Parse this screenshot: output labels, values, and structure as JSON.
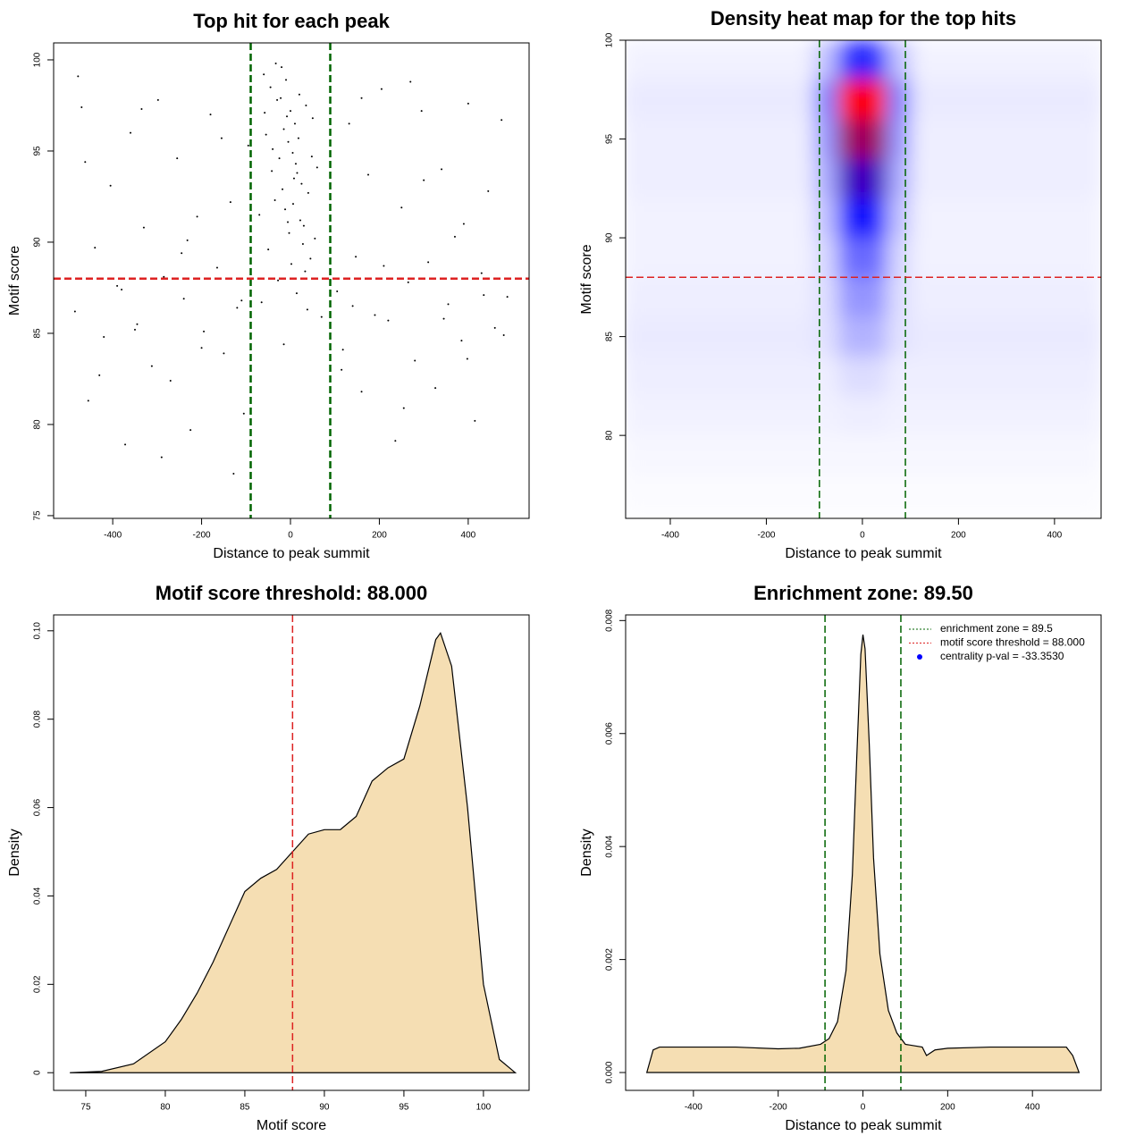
{
  "chart_data": [
    {
      "type": "scatter",
      "title": "Top hit for each peak",
      "xlabel": "Distance to peak summit",
      "ylabel": "Motif score",
      "xlim": [
        -533,
        537
      ],
      "ylim": [
        74.85,
        100.93
      ],
      "xticks": [
        -400,
        -200,
        0,
        200,
        400
      ],
      "yticks": [
        75,
        80,
        85,
        90,
        95,
        100
      ],
      "color": "#000000",
      "vlines": [
        -89.5,
        89.5
      ],
      "vline_color": "#006400",
      "hlines": [
        88
      ],
      "hline_color": "#dd2222",
      "x": [
        -60,
        -45,
        -30,
        -20,
        -10,
        0,
        10,
        20,
        35,
        50,
        -55,
        -40,
        -25,
        -15,
        -5,
        5,
        15,
        25,
        40,
        60,
        -70,
        -35,
        -12,
        8,
        30,
        55,
        -50,
        -18,
        2,
        22,
        45,
        -28,
        -8,
        12,
        33,
        -65,
        -3,
        18,
        70,
        -42,
        -22,
        6,
        28,
        -58,
        14,
        -33,
        48,
        -6,
        38,
        -15,
        -485,
        -470,
        -455,
        -440,
        -420,
        -405,
        -390,
        -372,
        -360,
        -345,
        -330,
        -312,
        -298,
        -285,
        -270,
        -255,
        -240,
        -225,
        -210,
        -195,
        -180,
        -165,
        -150,
        -135,
        -120,
        -105,
        -95,
        105,
        118,
        132,
        147,
        160,
        175,
        190,
        205,
        220,
        236,
        250,
        265,
        280,
        295,
        310,
        326,
        340,
        355,
        370,
        385,
        400,
        415,
        430,
        445,
        460,
        475,
        488,
        -478,
        -430,
        -380,
        -335,
        -290,
        -245,
        -200,
        -155,
        -110,
        115,
        160,
        210,
        255,
        300,
        345,
        390,
        435,
        480,
        -462,
        -350,
        -232,
        -128,
        140,
        270,
        398,
        466
      ],
      "values": [
        99.2,
        98.5,
        97.8,
        99.6,
        98.9,
        97.2,
        96.5,
        98.1,
        97.5,
        96.8,
        95.9,
        95.1,
        94.6,
        96.2,
        95.5,
        94.9,
        93.8,
        93.2,
        92.7,
        94.1,
        91.5,
        92.3,
        91.8,
        93.5,
        90.9,
        90.2,
        89.6,
        92.9,
        88.8,
        91.2,
        89.1,
        87.9,
        96.9,
        94.3,
        88.4,
        86.7,
        90.5,
        95.7,
        85.9,
        93.9,
        97.9,
        92.1,
        89.9,
        97.1,
        87.2,
        99.8,
        94.7,
        91.1,
        86.3,
        84.4,
        86.2,
        97.4,
        81.3,
        89.7,
        84.8,
        93.1,
        87.6,
        78.9,
        96.0,
        85.5,
        90.8,
        83.2,
        97.8,
        88.1,
        82.4,
        94.6,
        86.9,
        79.7,
        91.4,
        85.1,
        97.0,
        88.6,
        83.9,
        92.2,
        86.4,
        80.6,
        95.3,
        87.3,
        84.1,
        96.5,
        89.2,
        81.8,
        93.7,
        86.0,
        98.4,
        85.7,
        79.1,
        91.9,
        87.8,
        83.5,
        97.2,
        88.9,
        82.0,
        94.0,
        86.6,
        90.3,
        84.6,
        97.6,
        80.2,
        88.3,
        92.8,
        85.3,
        96.7,
        87.0,
        99.1,
        82.7,
        87.4,
        97.3,
        78.2,
        89.4,
        84.2,
        95.7,
        86.8,
        83.0,
        97.9,
        88.7,
        80.9,
        93.4,
        85.8,
        91.0,
        87.1,
        84.9,
        94.4,
        85.2,
        90.1,
        77.3,
        86.5,
        98.8,
        83.6,
        88.0
      ]
    },
    {
      "type": "heatmap",
      "title": "Density heat map for the top hits",
      "xlabel": "Distance to peak summit",
      "ylabel": "Motif score",
      "xlim": [
        -493,
        497
      ],
      "ylim": [
        75.8,
        100
      ],
      "xticks": [
        -400,
        -200,
        0,
        200,
        400
      ],
      "yticks": [
        80,
        85,
        90,
        95,
        100
      ],
      "colors": [
        "#ffffff",
        "#0000ff",
        "#ff0000"
      ],
      "vlines": [
        -89.5,
        89.5
      ],
      "vline_color": "#006400",
      "hlines": [
        88
      ],
      "hline_color": "#dd2222",
      "x": [
        -475,
        -425,
        -375,
        -325,
        -275,
        -225,
        -175,
        -125,
        -75,
        -25,
        25,
        75,
        125,
        175,
        225,
        275,
        325,
        375,
        425,
        475
      ],
      "y": [
        99,
        97,
        95,
        93,
        91,
        89,
        87,
        85,
        83,
        81,
        79,
        77
      ],
      "values": [
        [
          0.03,
          0.03,
          0.03,
          0.03,
          0.03,
          0.03,
          0.03,
          0.03,
          0.15,
          0.5,
          0.5,
          0.15,
          0.03,
          0.03,
          0.03,
          0.03,
          0.03,
          0.03,
          0.03,
          0.03
        ],
        [
          0.05,
          0.05,
          0.05,
          0.05,
          0.05,
          0.05,
          0.05,
          0.05,
          0.3,
          1.0,
          1.0,
          0.3,
          0.05,
          0.05,
          0.05,
          0.05,
          0.05,
          0.05,
          0.05,
          0.05
        ],
        [
          0.04,
          0.04,
          0.04,
          0.04,
          0.04,
          0.04,
          0.04,
          0.04,
          0.25,
          0.85,
          0.85,
          0.25,
          0.04,
          0.04,
          0.04,
          0.04,
          0.04,
          0.04,
          0.04,
          0.04
        ],
        [
          0.04,
          0.04,
          0.04,
          0.04,
          0.04,
          0.04,
          0.04,
          0.04,
          0.2,
          0.7,
          0.7,
          0.2,
          0.04,
          0.04,
          0.04,
          0.04,
          0.04,
          0.04,
          0.04,
          0.04
        ],
        [
          0.03,
          0.03,
          0.03,
          0.03,
          0.03,
          0.03,
          0.03,
          0.03,
          0.15,
          0.55,
          0.55,
          0.15,
          0.03,
          0.03,
          0.03,
          0.03,
          0.03,
          0.03,
          0.03,
          0.03
        ],
        [
          0.03,
          0.03,
          0.03,
          0.03,
          0.03,
          0.03,
          0.03,
          0.03,
          0.1,
          0.35,
          0.35,
          0.1,
          0.03,
          0.03,
          0.03,
          0.03,
          0.03,
          0.03,
          0.03,
          0.03
        ],
        [
          0.04,
          0.04,
          0.04,
          0.04,
          0.04,
          0.04,
          0.04,
          0.04,
          0.08,
          0.25,
          0.25,
          0.08,
          0.04,
          0.04,
          0.04,
          0.04,
          0.04,
          0.04,
          0.04,
          0.04
        ],
        [
          0.05,
          0.05,
          0.05,
          0.05,
          0.05,
          0.05,
          0.05,
          0.05,
          0.07,
          0.18,
          0.18,
          0.07,
          0.05,
          0.05,
          0.05,
          0.05,
          0.05,
          0.05,
          0.05,
          0.05
        ],
        [
          0.04,
          0.04,
          0.04,
          0.04,
          0.04,
          0.04,
          0.04,
          0.04,
          0.04,
          0.08,
          0.08,
          0.04,
          0.04,
          0.04,
          0.04,
          0.04,
          0.04,
          0.04,
          0.04,
          0.04
        ],
        [
          0.03,
          0.03,
          0.03,
          0.03,
          0.03,
          0.03,
          0.03,
          0.03,
          0.03,
          0.04,
          0.04,
          0.03,
          0.03,
          0.03,
          0.03,
          0.03,
          0.03,
          0.03,
          0.03,
          0.03
        ],
        [
          0.02,
          0.02,
          0.02,
          0.02,
          0.02,
          0.02,
          0.02,
          0.02,
          0.02,
          0.02,
          0.02,
          0.02,
          0.02,
          0.02,
          0.02,
          0.02,
          0.02,
          0.02,
          0.02,
          0.02
        ],
        [
          0.01,
          0.01,
          0.01,
          0.01,
          0.01,
          0.01,
          0.01,
          0.01,
          0.01,
          0.01,
          0.01,
          0.01,
          0.01,
          0.01,
          0.01,
          0.01,
          0.01,
          0.01,
          0.01,
          0.01
        ]
      ]
    },
    {
      "type": "area",
      "title": "Motif score threshold: 88.000",
      "xlabel": "Motif score",
      "ylabel": "Density",
      "xlim": [
        72.98,
        102.87
      ],
      "ylim": [
        -0.004,
        0.1036
      ],
      "xticks": [
        75,
        80,
        85,
        90,
        95,
        100
      ],
      "yticks": [
        0,
        {
          "value": 0.02,
          "label": "0.02"
        },
        {
          "value": 0.04,
          "label": "0.04"
        },
        {
          "value": 0.06,
          "label": "0.06"
        },
        {
          "value": 0.08,
          "label": "0.08"
        },
        {
          "value": 0.1,
          "label": "0.10"
        }
      ],
      "color": "#f5deb3",
      "vlines": [
        88
      ],
      "vline_color": "#dd2222",
      "x": [
        74,
        76,
        78,
        80,
        81,
        82,
        83,
        84,
        85,
        86,
        87,
        88,
        89,
        90,
        91,
        92,
        93,
        94,
        95,
        96,
        97,
        97.3,
        98,
        99,
        100,
        101,
        102
      ],
      "values": [
        0,
        0.0003,
        0.002,
        0.007,
        0.012,
        0.018,
        0.025,
        0.033,
        0.041,
        0.044,
        0.046,
        0.05,
        0.054,
        0.055,
        0.055,
        0.058,
        0.066,
        0.069,
        0.071,
        0.083,
        0.098,
        0.0995,
        0.092,
        0.06,
        0.02,
        0.003,
        0
      ]
    },
    {
      "type": "area",
      "title": "Enrichment zone: 89.50",
      "xlabel": "Distance to peak summit",
      "ylabel": "Density",
      "xlim": [
        -560,
        562
      ],
      "ylim": [
        -0.000316,
        0.0081
      ],
      "xticks": [
        -400,
        -200,
        0,
        200,
        400
      ],
      "yticks": [
        {
          "value": 0,
          "label": "0.000"
        },
        {
          "value": 0.002,
          "label": "0.002"
        },
        {
          "value": 0.004,
          "label": "0.004"
        },
        {
          "value": 0.006,
          "label": "0.006"
        },
        {
          "value": 0.008,
          "label": "0.008"
        }
      ],
      "color": "#f5deb3",
      "vlines": [
        -89.5,
        89.5
      ],
      "vline_color": "#006400",
      "legend": [
        {
          "label": "enrichment zone = 89.5",
          "color": "#006400",
          "marker": "line"
        },
        {
          "label": "motif score threshold = 88.000",
          "color": "#dd2222",
          "marker": "line"
        },
        {
          "label": "centrality p-val = -33.3530",
          "color": "#0000ff",
          "marker": "dot"
        }
      ],
      "x": [
        -510,
        -495,
        -480,
        -400,
        -300,
        -200,
        -150,
        -100,
        -80,
        -60,
        -40,
        -25,
        -15,
        -5,
        0,
        5,
        15,
        25,
        40,
        60,
        80,
        100,
        140,
        150,
        170,
        200,
        300,
        400,
        480,
        495,
        510
      ],
      "values": [
        0,
        0.0004,
        0.00045,
        0.00045,
        0.00045,
        0.00042,
        0.00043,
        0.0005,
        0.0006,
        0.0009,
        0.0018,
        0.0035,
        0.0055,
        0.0074,
        0.00775,
        0.0075,
        0.0058,
        0.0038,
        0.0021,
        0.0011,
        0.0007,
        0.0005,
        0.00045,
        0.0003,
        0.0004,
        0.00043,
        0.00045,
        0.00045,
        0.00045,
        0.0003,
        0
      ]
    }
  ]
}
